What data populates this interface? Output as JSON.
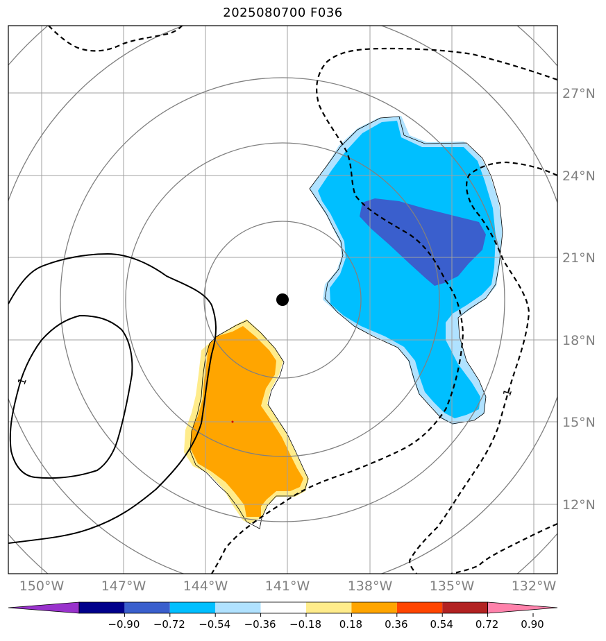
{
  "title": "2025080700 F036",
  "lat_labels": [
    "27°N",
    "24°N",
    "21°N",
    "18°N",
    "15°N",
    "12°N"
  ],
  "lon_labels": [
    "150°W",
    "147°W",
    "144°W",
    "141°W",
    "138°W",
    "135°W",
    "132°W"
  ],
  "contour_labels": [
    "1",
    "1"
  ],
  "colorbar": {
    "ticks": [
      "−0.90",
      "−0.72",
      "−0.54",
      "−0.36",
      "−0.18",
      "0.18",
      "0.36",
      "0.54",
      "0.72",
      "0.90"
    ],
    "colors": [
      "#9932CC",
      "#00008B",
      "#3A5FCD",
      "#00BFFF",
      "#B0E2FF",
      "#FFFFFF",
      "#FFEC8B",
      "#FFA500",
      "#FF4500",
      "#B22222",
      "#FF82AB"
    ]
  },
  "fill_colors": {
    "light_blue": "#B0E2FF",
    "deep_sky_blue": "#00BFFF",
    "royal_blue": "#3A5FCD",
    "light_yellow": "#FFEC8B",
    "orange": "#FFA500"
  }
}
